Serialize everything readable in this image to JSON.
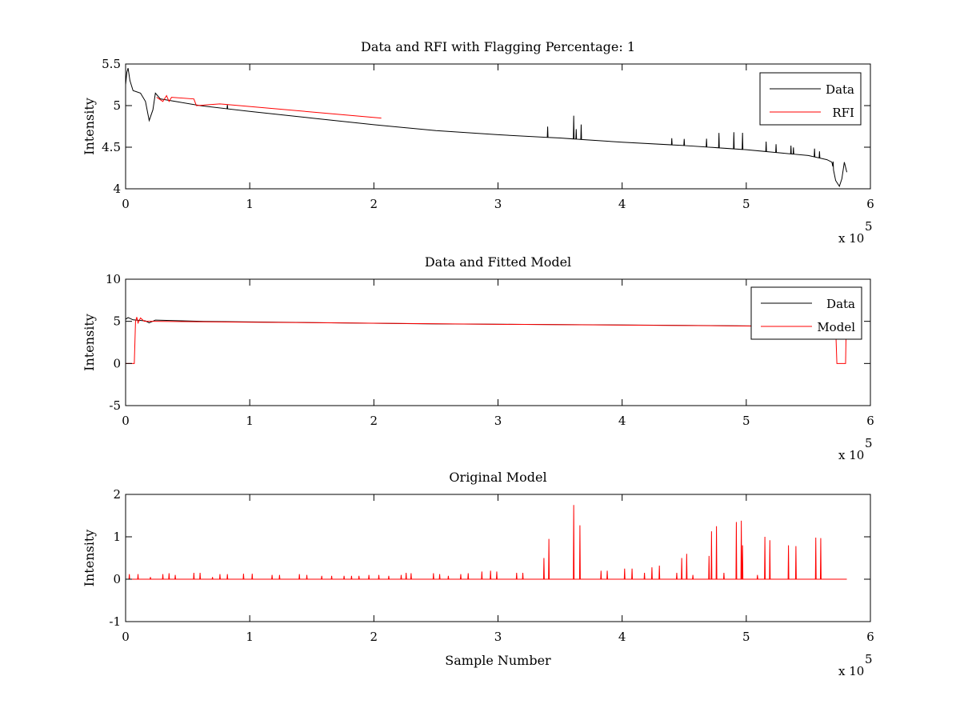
{
  "figure": {
    "background": "#ffffff",
    "axis_color": "#000000"
  },
  "chart_data": [
    {
      "type": "line",
      "title": "Data and RFI with Flagging Percentage: 1",
      "xlabel": "",
      "ylabel": "Intensity",
      "xlim": [
        0,
        600000
      ],
      "ylim": [
        4,
        5.5
      ],
      "x_ticks": [
        0,
        1,
        2,
        3,
        4,
        5,
        6
      ],
      "y_ticks": [
        4,
        4.5,
        5,
        5.5
      ],
      "x_exponent_label": "x 10",
      "x_exponent": "5",
      "grid": false,
      "legend": "top-right",
      "series": [
        {
          "name": "Data",
          "color": "#000000",
          "baseline": [
            [
              0,
              5.25
            ],
            [
              1000,
              5.4
            ],
            [
              2000,
              5.45
            ],
            [
              3500,
              5.3
            ],
            [
              6000,
              5.18
            ],
            [
              12000,
              5.15
            ],
            [
              16000,
              5.05
            ],
            [
              19000,
              4.82
            ],
            [
              22000,
              4.95
            ],
            [
              24000,
              5.15
            ],
            [
              28000,
              5.08
            ],
            [
              40000,
              5.05
            ],
            [
              60000,
              5.0
            ],
            [
              100000,
              4.93
            ],
            [
              150000,
              4.85
            ],
            [
              200000,
              4.77
            ],
            [
              250000,
              4.7
            ],
            [
              300000,
              4.65
            ],
            [
              350000,
              4.61
            ],
            [
              400000,
              4.56
            ],
            [
              450000,
              4.52
            ],
            [
              500000,
              4.47
            ],
            [
              550000,
              4.4
            ],
            [
              565000,
              4.35
            ],
            [
              569000,
              4.32
            ],
            [
              572000,
              4.1
            ],
            [
              575000,
              4.03
            ],
            [
              577000,
              4.12
            ],
            [
              579000,
              4.32
            ],
            [
              581000,
              4.2
            ]
          ],
          "spikes": [
            [
              82000,
              0.05
            ],
            [
              340000,
              0.13
            ],
            [
              361000,
              0.28
            ],
            [
              363000,
              0.12
            ],
            [
              367000,
              0.18
            ],
            [
              440000,
              0.08
            ],
            [
              450000,
              0.08
            ],
            [
              468000,
              0.1
            ],
            [
              478000,
              0.18
            ],
            [
              490000,
              0.2
            ],
            [
              497000,
              0.2
            ],
            [
              516000,
              0.12
            ],
            [
              524000,
              0.1
            ],
            [
              536000,
              0.1
            ],
            [
              538000,
              0.08
            ],
            [
              555000,
              0.1
            ],
            [
              559000,
              0.08
            ],
            [
              570000,
              0.08
            ]
          ]
        },
        {
          "name": "RFI",
          "color": "#ff0000",
          "points": [
            [
              25000,
              5.1
            ],
            [
              30000,
              5.05
            ],
            [
              33000,
              5.12
            ],
            [
              35000,
              5.05
            ],
            [
              37000,
              5.1
            ],
            [
              55000,
              5.08
            ],
            [
              57000,
              5.0
            ],
            [
              76000,
              5.02
            ],
            [
              206000,
              4.85
            ]
          ]
        }
      ]
    },
    {
      "type": "line",
      "title": "Data and Fitted Model",
      "xlabel": "",
      "ylabel": "Intensity",
      "xlim": [
        0,
        600000
      ],
      "ylim": [
        -5,
        10
      ],
      "x_ticks": [
        0,
        1,
        2,
        3,
        4,
        5,
        6
      ],
      "y_ticks": [
        -5,
        0,
        5,
        10
      ],
      "x_exponent_label": "x 10",
      "x_exponent": "5",
      "grid": false,
      "legend": "top-right",
      "series": [
        {
          "name": "Data",
          "color": "#000000",
          "points": [
            [
              0,
              5.25
            ],
            [
              2000,
              5.45
            ],
            [
              6000,
              5.18
            ],
            [
              16000,
              5.05
            ],
            [
              19000,
              4.82
            ],
            [
              24000,
              5.15
            ],
            [
              60000,
              5.0
            ],
            [
              150000,
              4.85
            ],
            [
              250000,
              4.7
            ],
            [
              350000,
              4.61
            ],
            [
              450000,
              4.52
            ],
            [
              550000,
              4.4
            ],
            [
              575000,
              4.05
            ],
            [
              581000,
              4.2
            ]
          ]
        },
        {
          "name": "Model",
          "color": "#ff0000",
          "points": [
            [
              0,
              0
            ],
            [
              7000,
              0
            ],
            [
              7500,
              2.5
            ],
            [
              8000,
              5.0
            ],
            [
              9000,
              5.5
            ],
            [
              10000,
              4.8
            ],
            [
              12000,
              5.4
            ],
            [
              15000,
              5.0
            ],
            [
              20000,
              5.0
            ],
            [
              100000,
              4.9
            ],
            [
              300000,
              4.65
            ],
            [
              500000,
              4.45
            ],
            [
              572000,
              4.35
            ],
            [
              573000,
              0
            ],
            [
              580000,
              0
            ],
            [
              580500,
              4.3
            ]
          ]
        }
      ]
    },
    {
      "type": "line",
      "title": "Original Model",
      "xlabel": "Sample Number",
      "ylabel": "Intensity",
      "xlim": [
        0,
        600000
      ],
      "ylim": [
        -1,
        2
      ],
      "x_ticks": [
        0,
        1,
        2,
        3,
        4,
        5,
        6
      ],
      "y_ticks": [
        -1,
        0,
        1,
        2
      ],
      "x_exponent_label": "x 10",
      "x_exponent": "5",
      "grid": false,
      "legend": "none",
      "series": [
        {
          "name": "",
          "color": "#ff0000",
          "baseline": [
            [
              0,
              0
            ],
            [
              581000,
              0
            ]
          ],
          "spikes": [
            [
              3000,
              0.12
            ],
            [
              10000,
              0.12
            ],
            [
              20000,
              0.05
            ],
            [
              30000,
              0.12
            ],
            [
              35000,
              0.14
            ],
            [
              40000,
              0.1
            ],
            [
              55000,
              0.15
            ],
            [
              60000,
              0.15
            ],
            [
              70000,
              0.05
            ],
            [
              76000,
              0.12
            ],
            [
              82000,
              0.12
            ],
            [
              95000,
              0.13
            ],
            [
              102000,
              0.13
            ],
            [
              118000,
              0.1
            ],
            [
              124000,
              0.1
            ],
            [
              140000,
              0.12
            ],
            [
              146000,
              0.1
            ],
            [
              158000,
              0.08
            ],
            [
              166000,
              0.08
            ],
            [
              176000,
              0.08
            ],
            [
              182000,
              0.08
            ],
            [
              188000,
              0.08
            ],
            [
              196000,
              0.1
            ],
            [
              204000,
              0.1
            ],
            [
              212000,
              0.08
            ],
            [
              222000,
              0.1
            ],
            [
              226000,
              0.15
            ],
            [
              230000,
              0.14
            ],
            [
              248000,
              0.14
            ],
            [
              253000,
              0.12
            ],
            [
              260000,
              0.08
            ],
            [
              270000,
              0.12
            ],
            [
              276000,
              0.14
            ],
            [
              287000,
              0.18
            ],
            [
              294000,
              0.2
            ],
            [
              299000,
              0.18
            ],
            [
              315000,
              0.15
            ],
            [
              320000,
              0.15
            ],
            [
              337000,
              0.5
            ],
            [
              341000,
              0.95
            ],
            [
              361000,
              1.75
            ],
            [
              366000,
              1.27
            ],
            [
              383000,
              0.2
            ],
            [
              388000,
              0.2
            ],
            [
              402000,
              0.25
            ],
            [
              408000,
              0.25
            ],
            [
              418000,
              0.15
            ],
            [
              424000,
              0.28
            ],
            [
              430000,
              0.32
            ],
            [
              444000,
              0.15
            ],
            [
              448000,
              0.5
            ],
            [
              452000,
              0.6
            ],
            [
              457000,
              0.1
            ],
            [
              470000,
              0.55
            ],
            [
              472000,
              1.13
            ],
            [
              476000,
              1.25
            ],
            [
              482000,
              0.15
            ],
            [
              492000,
              1.35
            ],
            [
              496000,
              1.38
            ],
            [
              497000,
              0.8
            ],
            [
              509000,
              0.1
            ],
            [
              515000,
              1.0
            ],
            [
              519000,
              0.92
            ],
            [
              534000,
              0.8
            ],
            [
              540000,
              0.78
            ],
            [
              556000,
              0.98
            ],
            [
              560000,
              0.97
            ]
          ]
        }
      ]
    }
  ]
}
